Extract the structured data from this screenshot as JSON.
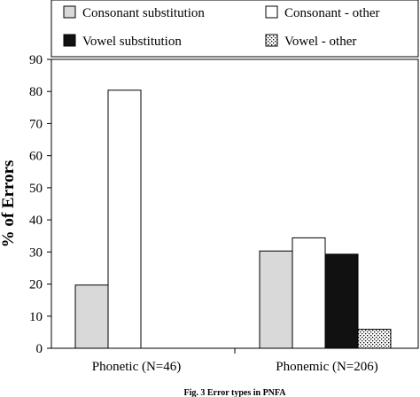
{
  "chart_data": {
    "type": "bar",
    "title": "",
    "xlabel": "",
    "ylabel": "% of Errors",
    "ylim": [
      0,
      90
    ],
    "yticks": [
      0,
      10,
      20,
      30,
      40,
      50,
      60,
      70,
      80,
      90
    ],
    "grid": false,
    "legend_position": "top",
    "categories": [
      "Phonetic (N=46)",
      "Phonemic (N=206)"
    ],
    "series": [
      {
        "name": "Consonant substitution",
        "values": [
          19.7,
          30.3
        ],
        "color": "#d9d9d9",
        "pattern": "solid"
      },
      {
        "name": "Consonant - other",
        "values": [
          80.4,
          34.4
        ],
        "color": "#ffffff",
        "pattern": "solid"
      },
      {
        "name": "Vowel substitution",
        "values": [
          null,
          29.3
        ],
        "color": "#111111",
        "pattern": "solid"
      },
      {
        "name": "Vowel - other",
        "values": [
          null,
          5.9
        ],
        "color": "#ffffff",
        "pattern": "dots"
      }
    ]
  },
  "caption": "Fig. 3  Error types in PNFA"
}
